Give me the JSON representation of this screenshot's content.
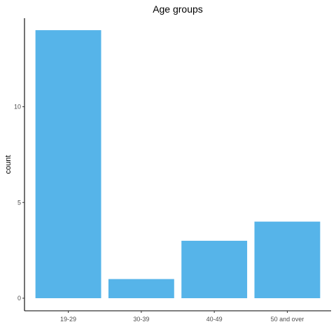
{
  "chart_data": {
    "type": "bar",
    "title": "Age groups",
    "xlabel": "",
    "ylabel": "count",
    "categories": [
      "19-29",
      "30-39",
      "40-49",
      "50 and over"
    ],
    "values": [
      14,
      1,
      3,
      4
    ],
    "ylim": [
      0,
      14.7
    ],
    "yticks": [
      0,
      5,
      10
    ],
    "bar_color": "#56B4E9",
    "grid": false,
    "legend": "none"
  }
}
